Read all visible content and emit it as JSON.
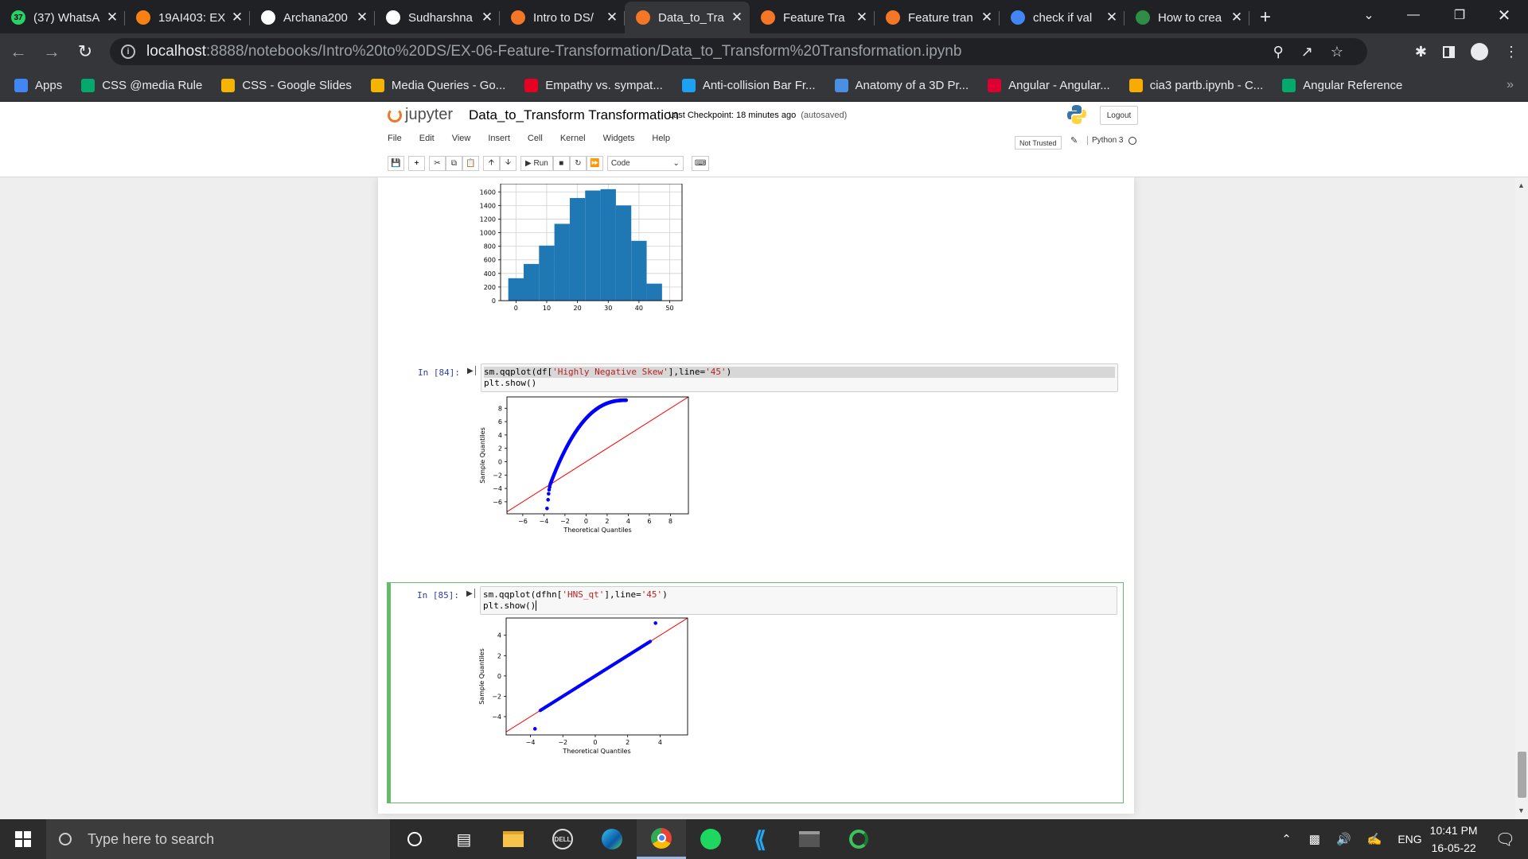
{
  "browser": {
    "tabs": [
      {
        "title": "(37) WhatsA",
        "icon": "whatsapp-icon",
        "color": "#25d366",
        "active": false,
        "badge": "37"
      },
      {
        "title": "19AI403: EX",
        "icon": "moodle-icon",
        "color": "#f98012",
        "active": false
      },
      {
        "title": "Archana200",
        "icon": "github-icon",
        "color": "#ffffff",
        "active": false
      },
      {
        "title": "Sudharshna",
        "icon": "github-icon",
        "color": "#ffffff",
        "active": false
      },
      {
        "title": "Intro to DS/",
        "icon": "loading-icon",
        "color": "#f37726",
        "active": false
      },
      {
        "title": "Data_to_Tra",
        "icon": "jupyter-icon",
        "color": "#f37726",
        "active": true
      },
      {
        "title": "Feature Tra",
        "icon": "jupyter-icon",
        "color": "#f37726",
        "active": false
      },
      {
        "title": "Feature tran",
        "icon": "jupyter-icon",
        "color": "#f37726",
        "active": false
      },
      {
        "title": "check if val",
        "icon": "google-icon",
        "color": "#4285f4",
        "active": false
      },
      {
        "title": "How to crea",
        "icon": "geeksforgeeks-icon",
        "color": "#2f8d46",
        "active": false
      }
    ],
    "url_host": "localhost",
    "url_path": ":8888/notebooks/Intro%20to%20DS/EX-06-Feature-Transformation/Data_to_Transform%20Transformation.ipynb",
    "bookmarks": [
      {
        "label": "Apps",
        "icon": "apps-grid-icon",
        "color": "#4285f4"
      },
      {
        "label": "CSS @media Rule",
        "icon": "w3schools-icon",
        "color": "#04aa6d"
      },
      {
        "label": "CSS - Google Slides",
        "icon": "google-slides-icon",
        "color": "#f4b400"
      },
      {
        "label": "Media Queries - Go...",
        "icon": "google-slides-icon",
        "color": "#f4b400"
      },
      {
        "label": "Empathy vs. sympat...",
        "icon": "pin-icon",
        "color": "#e60023"
      },
      {
        "label": "Anti-collision Bar Fr...",
        "icon": "bird-icon",
        "color": "#1da1f2"
      },
      {
        "label": "Anatomy of a 3D Pr...",
        "icon": "medium-icon",
        "color": "#4a90e2"
      },
      {
        "label": "Angular - Angular...",
        "icon": "angular-icon",
        "color": "#dd0031"
      },
      {
        "label": "cia3 partb.ipynb - C...",
        "icon": "colab-icon",
        "color": "#f9ab00"
      },
      {
        "label": "Angular Reference",
        "icon": "w3schools-icon",
        "color": "#04aa6d"
      }
    ]
  },
  "jupyter": {
    "logo_text": "jupyter",
    "notebook_name": "Data_to_Transform Transformation",
    "checkpoint": "Last Checkpoint: 18 minutes ago",
    "autosaved": "(autosaved)",
    "logout": "Logout",
    "menu": [
      "File",
      "Edit",
      "View",
      "Insert",
      "Cell",
      "Kernel",
      "Widgets",
      "Help"
    ],
    "not_trusted": "Not Trusted",
    "kernel": "Python 3",
    "run_label": "Run",
    "cell_type": "Code"
  },
  "cells": [
    {
      "prompt": "In [84]:",
      "code_line1": {
        "a": "sm.qqplot(df[",
        "s": "'Highly Negative Skew'",
        "b": "],line=",
        "t": "'45'",
        "c": ")"
      },
      "code_line2": "plt.show()"
    },
    {
      "prompt": "In [85]:",
      "code_line1": {
        "a": "sm.qqplot(dfhn[",
        "s": "'HNS_qt'",
        "b": "],line=",
        "t": "'45'",
        "c": ")"
      },
      "code_line2": "plt.show()"
    }
  ],
  "chart_data": [
    {
      "type": "bar",
      "title": "",
      "xlabel": "",
      "ylabel": "",
      "bin_edges": [
        -2.5,
        2.5,
        7.5,
        12.5,
        17.5,
        22.5,
        27.5,
        32.5,
        37.5,
        42.5,
        47.5,
        52.5
      ],
      "values": [
        330,
        540,
        810,
        1130,
        1510,
        1620,
        1640,
        1400,
        880,
        250,
        0
      ],
      "xticks": [
        0,
        10,
        20,
        30,
        40,
        50
      ],
      "yticks": [
        0,
        200,
        400,
        600,
        800,
        1000,
        1200,
        1400,
        1600
      ],
      "xlim": [
        -5,
        54
      ],
      "ylim": [
        0,
        1720
      ],
      "grid": true,
      "color": "#1f77b4"
    },
    {
      "type": "scatter",
      "title": "",
      "xlabel": "Theoretical Quantiles",
      "ylabel": "Sample Quantiles",
      "xticks": [
        -6,
        -4,
        -2,
        0,
        2,
        4,
        6,
        8
      ],
      "yticks": [
        -6,
        -4,
        -2,
        0,
        2,
        4,
        6,
        8
      ],
      "xlim": [
        -7.5,
        9.7
      ],
      "ylim": [
        -7.8,
        9.7
      ],
      "reference_line": "45",
      "point_color": "#0000ff",
      "line_color": "#ff0000",
      "tail_points": [
        [
          -3.7,
          -7.0
        ],
        [
          -3.6,
          -5.7
        ],
        [
          -3.55,
          -4.8
        ],
        [
          -3.5,
          -4.2
        ],
        [
          -3.45,
          -3.8
        ]
      ]
    },
    {
      "type": "scatter",
      "title": "",
      "xlabel": "Theoretical Quantiles",
      "ylabel": "Sample Quantiles",
      "xticks": [
        -4,
        -2,
        0,
        2,
        4
      ],
      "yticks": [
        -4,
        -2,
        0,
        2,
        4
      ],
      "xlim": [
        -5.5,
        5.7
      ],
      "ylim": [
        -5.8,
        5.7
      ],
      "reference_line": "45",
      "point_color": "#0000ff",
      "line_color": "#ff0000",
      "outliers": [
        [
          -3.72,
          -5.2
        ],
        [
          3.72,
          5.2
        ]
      ],
      "body_range": [
        -3.4,
        3.4
      ]
    }
  ],
  "taskbar": {
    "search_placeholder": "Type here to search",
    "language": "ENG",
    "time": "10:41 PM",
    "date": "16-05-22"
  }
}
